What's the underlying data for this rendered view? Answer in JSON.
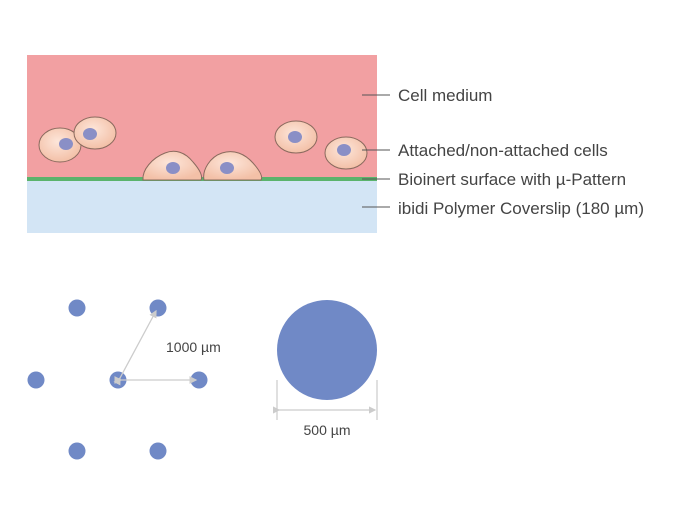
{
  "labels": {
    "cell_medium": "Cell medium",
    "cells": "Attached/non-attached cells",
    "surface": "Bioinert surface with µ-Pattern",
    "coverslip": "ibidi Polymer Coverslip (180 µm)"
  },
  "pattern": {
    "spacing_label": "1000 µm",
    "diameter_label": "500 µm"
  },
  "colors": {
    "medium": "#f2a0a2",
    "surface": "#5bb36c",
    "coverslip": "#d3e5f5",
    "cell": "#f6c9b4",
    "nucleus": "#8a8fc6",
    "spot": "#7089c6"
  }
}
